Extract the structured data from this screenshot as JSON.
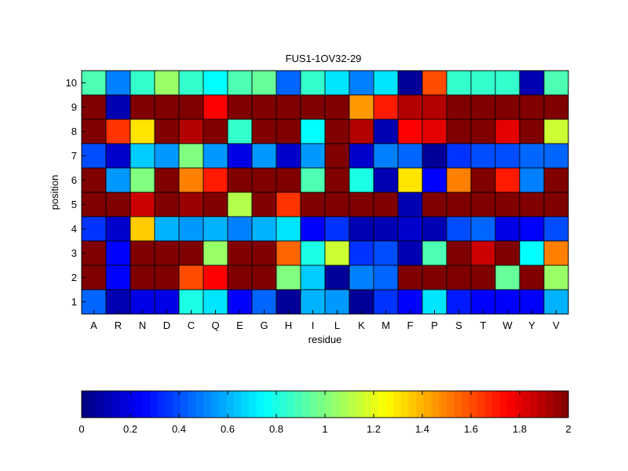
{
  "chart_data": {
    "type": "heatmap",
    "title": "FUS1-1OV32-29",
    "xlabel": "residue",
    "ylabel": "position",
    "x_categories": [
      "A",
      "R",
      "N",
      "D",
      "C",
      "Q",
      "E",
      "G",
      "H",
      "I",
      "L",
      "K",
      "M",
      "F",
      "P",
      "S",
      "T",
      "W",
      "Y",
      "V"
    ],
    "y_categories": [
      "10",
      "9",
      "8",
      "7",
      "6",
      "5",
      "4",
      "3",
      "2",
      "1"
    ],
    "values": [
      [
        0.9,
        0.5,
        0.85,
        1.05,
        0.85,
        0.75,
        0.9,
        0.95,
        0.45,
        0.85,
        0.7,
        0.5,
        0.7,
        0.05,
        1.6,
        0.85,
        0.85,
        0.85,
        0.1,
        0.9
      ],
      [
        2.0,
        0.1,
        2.0,
        2.0,
        2.0,
        1.75,
        2.0,
        2.0,
        2.0,
        2.0,
        2.0,
        1.45,
        1.7,
        1.9,
        1.9,
        2.0,
        2.0,
        2.0,
        2.0,
        2.0
      ],
      [
        2.0,
        1.65,
        1.3,
        2.0,
        1.9,
        2.0,
        0.85,
        2.0,
        2.0,
        0.75,
        2.0,
        1.9,
        0.1,
        1.75,
        1.8,
        2.0,
        2.0,
        1.8,
        2.0,
        1.15
      ],
      [
        0.4,
        0.15,
        0.65,
        0.55,
        1.0,
        0.55,
        0.2,
        0.55,
        0.15,
        0.55,
        2.0,
        0.15,
        0.5,
        0.45,
        0.05,
        0.35,
        0.4,
        0.4,
        0.45,
        0.45
      ],
      [
        2.0,
        0.55,
        1.0,
        2.0,
        1.5,
        1.7,
        2.0,
        2.0,
        2.0,
        0.9,
        2.0,
        0.8,
        0.1,
        1.3,
        0.25,
        1.5,
        2.0,
        1.7,
        0.5,
        2.0
      ],
      [
        2.0,
        2.0,
        1.85,
        2.0,
        1.95,
        2.0,
        1.1,
        2.0,
        1.65,
        2.0,
        2.0,
        2.0,
        2.0,
        0.1,
        2.0,
        2.0,
        2.0,
        2.0,
        2.0,
        2.0
      ],
      [
        0.35,
        0.15,
        1.35,
        0.6,
        0.55,
        0.6,
        0.5,
        0.6,
        0.7,
        0.25,
        0.35,
        0.1,
        0.1,
        0.15,
        0.1,
        0.4,
        0.45,
        0.2,
        0.25,
        0.4
      ],
      [
        2.0,
        0.25,
        2.0,
        2.0,
        2.0,
        1.05,
        2.0,
        2.0,
        1.55,
        0.8,
        1.15,
        0.35,
        0.4,
        0.1,
        0.9,
        2.0,
        1.85,
        2.0,
        0.75,
        1.5
      ],
      [
        2.0,
        0.25,
        2.0,
        2.0,
        1.6,
        1.75,
        2.0,
        2.0,
        1.0,
        0.65,
        0.05,
        0.5,
        0.45,
        2.0,
        2.0,
        2.0,
        2.0,
        0.95,
        2.0,
        1.05
      ],
      [
        0.45,
        0.1,
        0.2,
        0.2,
        0.8,
        0.7,
        0.25,
        0.45,
        0.05,
        0.6,
        0.55,
        0.05,
        0.35,
        0.25,
        0.7,
        0.3,
        0.25,
        0.25,
        0.25,
        0.6
      ]
    ],
    "colorbar": {
      "colormap": "jet",
      "range": [
        0,
        2
      ],
      "ticks": [
        "0",
        "0.2",
        "0.4",
        "0.6",
        "0.8",
        "1",
        "1.2",
        "1.4",
        "1.6",
        "1.8",
        "2"
      ]
    },
    "grid": true
  }
}
